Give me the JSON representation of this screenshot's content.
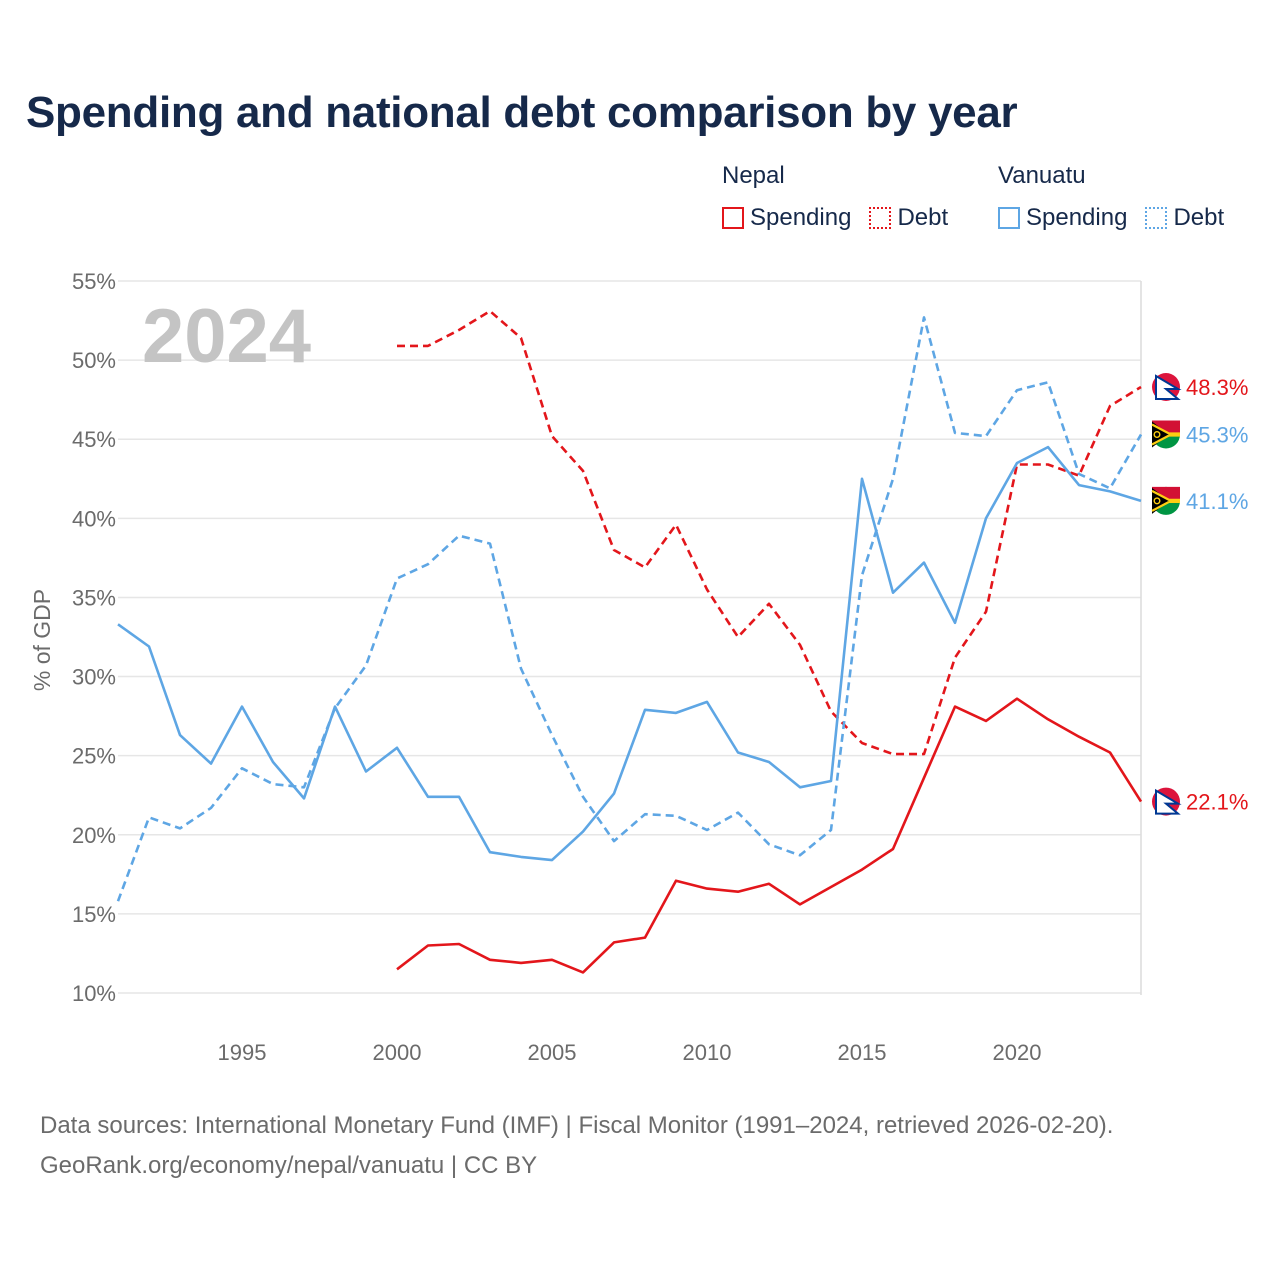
{
  "colors": {
    "nepal": "#e3161b",
    "vanuatu": "#5ea6e4",
    "title": "#16294a",
    "grid": "#e6e6e6",
    "tick": "#6b6b6b"
  },
  "legend": {
    "groups": [
      {
        "name": "Nepal",
        "spending_label": "Spending",
        "debt_label": "Debt"
      },
      {
        "name": "Vanuatu",
        "spending_label": "Spending",
        "debt_label": "Debt"
      }
    ]
  },
  "sources": {
    "line1": "Data sources: International Monetary Fund (IMF) | Fiscal Monitor (1991–2024, retrieved 2026-02-20).",
    "line2": "GeoRank.org/economy/nepal/vanuatu | CC BY"
  },
  "chart_data": {
    "type": "line",
    "title": "Spending and national debt comparison by year",
    "year_label": "2024",
    "ylabel": "% of GDP",
    "xlim": [
      1991,
      2024
    ],
    "ylim": [
      8,
      55
    ],
    "yticks": [
      10,
      15,
      20,
      25,
      30,
      35,
      40,
      45,
      50,
      55
    ],
    "ytick_labels": [
      "10%",
      "15%",
      "20%",
      "25%",
      "30%",
      "35%",
      "40%",
      "45%",
      "50%",
      "55%"
    ],
    "xticks": [
      1995,
      2000,
      2005,
      2010,
      2015,
      2020
    ],
    "xtick_labels": [
      "1995",
      "2000",
      "2005",
      "2010",
      "2015",
      "2020"
    ],
    "series": [
      {
        "name": "Nepal Spending",
        "country": "nepal",
        "style": "solid",
        "x": [
          2000,
          2001,
          2002,
          2003,
          2004,
          2005,
          2006,
          2007,
          2008,
          2009,
          2010,
          2011,
          2012,
          2013,
          2014,
          2015,
          2016,
          2017,
          2018,
          2019,
          2020,
          2021,
          2022,
          2023,
          2024
        ],
        "values": [
          11.5,
          13.0,
          13.1,
          12.1,
          11.9,
          12.1,
          11.3,
          13.2,
          13.5,
          17.1,
          16.6,
          16.4,
          16.9,
          15.6,
          16.7,
          17.8,
          19.1,
          23.6,
          28.1,
          27.2,
          28.6,
          27.3,
          26.2,
          25.2,
          22.1
        ],
        "end_label": "22.1%"
      },
      {
        "name": "Nepal Debt",
        "country": "nepal",
        "style": "dashed",
        "x": [
          2000,
          2001,
          2002,
          2003,
          2004,
          2005,
          2006,
          2007,
          2008,
          2009,
          2010,
          2011,
          2012,
          2013,
          2014,
          2015,
          2016,
          2017,
          2018,
          2019,
          2020,
          2021,
          2022,
          2023,
          2024
        ],
        "values": [
          50.9,
          50.9,
          51.9,
          53.1,
          51.4,
          45.2,
          43.0,
          38.0,
          36.9,
          39.6,
          35.5,
          32.5,
          34.6,
          32.0,
          27.8,
          25.8,
          25.1,
          25.1,
          31.2,
          34.1,
          43.4,
          43.4,
          42.7,
          47.1,
          48.3
        ],
        "end_label": "48.3%"
      },
      {
        "name": "Vanuatu Spending",
        "country": "vanuatu",
        "style": "solid",
        "x": [
          1991,
          1992,
          1993,
          1994,
          1995,
          1996,
          1997,
          1998,
          1999,
          2000,
          2001,
          2002,
          2003,
          2004,
          2005,
          2006,
          2007,
          2008,
          2009,
          2010,
          2011,
          2012,
          2013,
          2014,
          2015,
          2016,
          2017,
          2018,
          2019,
          2020,
          2021,
          2022,
          2023,
          2024
        ],
        "values": [
          33.3,
          31.9,
          26.3,
          24.5,
          28.1,
          24.6,
          22.3,
          28.1,
          24.0,
          25.5,
          22.4,
          22.4,
          18.9,
          18.6,
          18.4,
          20.2,
          22.6,
          27.9,
          27.7,
          28.4,
          25.2,
          24.6,
          23.0,
          23.4,
          42.5,
          35.3,
          37.2,
          33.4,
          40.0,
          43.5,
          44.5,
          42.1,
          41.7,
          41.1
        ],
        "end_label": "41.1%"
      },
      {
        "name": "Vanuatu Debt",
        "country": "vanuatu",
        "style": "dashed",
        "x": [
          1991,
          1992,
          1993,
          1994,
          1995,
          1996,
          1997,
          1998,
          1999,
          2000,
          2001,
          2002,
          2003,
          2004,
          2005,
          2006,
          2007,
          2008,
          2009,
          2010,
          2011,
          2012,
          2013,
          2014,
          2015,
          2016,
          2017,
          2018,
          2019,
          2020,
          2021,
          2022,
          2023,
          2024
        ],
        "values": [
          15.8,
          21.1,
          20.4,
          21.7,
          24.2,
          23.2,
          23.0,
          28.0,
          30.7,
          36.2,
          37.1,
          38.9,
          38.4,
          30.5,
          26.3,
          22.4,
          19.6,
          21.3,
          21.2,
          20.3,
          21.4,
          19.4,
          18.7,
          20.3,
          36.4,
          42.5,
          52.7,
          45.4,
          45.2,
          48.1,
          48.6,
          42.8,
          41.9,
          45.3
        ],
        "end_label": "45.3%"
      }
    ]
  }
}
